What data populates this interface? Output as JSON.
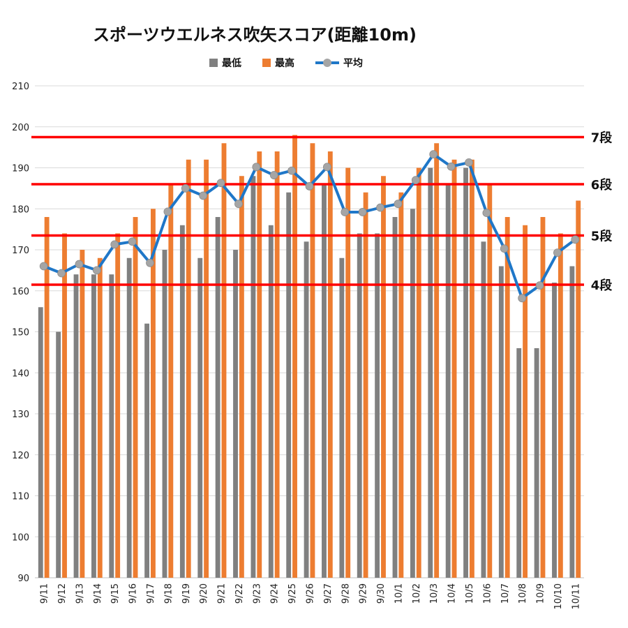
{
  "chart_data": {
    "type": "bar",
    "title": "スポーツウエルネス吹矢スコア(距離10m)",
    "xlabel": "",
    "ylabel": "",
    "ylim": [
      90,
      210
    ],
    "yticks": [
      90,
      100,
      110,
      120,
      130,
      140,
      150,
      160,
      170,
      180,
      190,
      200,
      210
    ],
    "grid": true,
    "legend_position": "top",
    "categories": [
      "9/11",
      "9/12",
      "9/13",
      "9/14",
      "9/15",
      "9/16",
      "9/17",
      "9/18",
      "9/19",
      "9/20",
      "9/21",
      "9/22",
      "9/23",
      "9/24",
      "9/25",
      "9/26",
      "9/27",
      "9/28",
      "9/29",
      "9/30",
      "10/1",
      "10/2",
      "10/3",
      "10/4",
      "10/5",
      "10/6",
      "10/7",
      "10/8",
      "10/9",
      "10/10",
      "10/11"
    ],
    "series": [
      {
        "name": "最低",
        "kind": "bar",
        "color": "#808080",
        "values": [
          156,
          150,
          164,
          164,
          164,
          168,
          152,
          170,
          176,
          168,
          178,
          170,
          188,
          176,
          184,
          172,
          186,
          168,
          174,
          174,
          178,
          180,
          190,
          186,
          190,
          172,
          166,
          146,
          146,
          162,
          166
        ]
      },
      {
        "name": "最高",
        "kind": "bar",
        "color": "#ed7d31",
        "values": [
          178,
          174,
          170,
          168,
          174,
          178,
          180,
          186,
          192,
          192,
          196,
          188,
          194,
          194,
          198,
          196,
          194,
          190,
          184,
          188,
          184,
          190,
          196,
          192,
          192,
          186,
          178,
          176,
          178,
          174,
          182
        ]
      },
      {
        "name": "平均",
        "kind": "line",
        "color": "#1f77c8",
        "marker_color": "#a5a5a5",
        "values": [
          166,
          164.3,
          166.5,
          165,
          171.3,
          172,
          166.8,
          179.3,
          185,
          183.2,
          186.3,
          181.2,
          190.2,
          188.2,
          189.3,
          185.5,
          190.2,
          179.2,
          179.2,
          180.3,
          181.2,
          187,
          193.3,
          190.3,
          191.3,
          179,
          170.3,
          158.2,
          161.3,
          169.3,
          172.5
        ]
      }
    ],
    "reference_lines": [
      {
        "label": "7段",
        "value": 197.5,
        "color": "#ff0000"
      },
      {
        "label": "6段",
        "value": 186,
        "color": "#ff0000"
      },
      {
        "label": "5段",
        "value": 173.5,
        "color": "#ff0000"
      },
      {
        "label": "4段",
        "value": 161.5,
        "color": "#ff0000"
      }
    ]
  }
}
